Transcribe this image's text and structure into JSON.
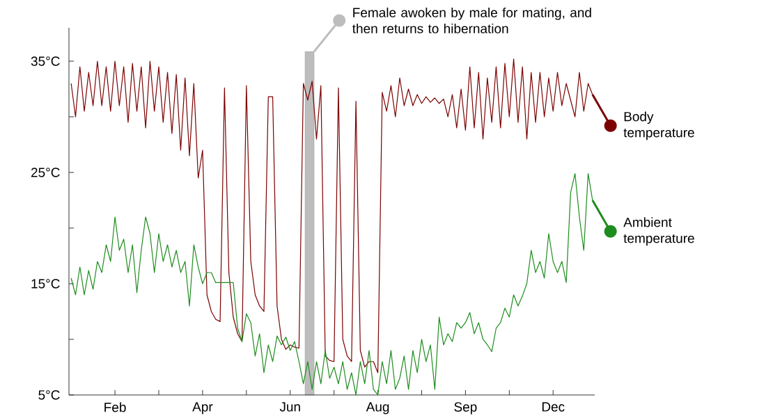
{
  "chart_data": {
    "type": "line",
    "categories": [
      null,
      null,
      null,
      null,
      null,
      null,
      null,
      null,
      null,
      null,
      "Feb",
      null,
      null,
      null,
      null,
      null,
      null,
      null,
      null,
      null,
      null,
      null,
      null,
      null,
      null,
      null,
      null,
      null,
      null,
      null,
      "Apr",
      null,
      null,
      null,
      null,
      null,
      null,
      null,
      null,
      null,
      null,
      null,
      null,
      null,
      null,
      null,
      null,
      null,
      null,
      null,
      "Jun",
      null,
      null,
      null,
      null,
      null,
      null,
      null,
      null,
      null,
      null,
      null,
      null,
      null,
      null,
      null,
      null,
      null,
      null,
      null,
      "Aug",
      null,
      null,
      null,
      null,
      null,
      null,
      null,
      null,
      null,
      null,
      null,
      null,
      null,
      null,
      null,
      null,
      null,
      null,
      null,
      "Sep",
      null,
      null,
      null,
      null,
      null,
      null,
      null,
      null,
      null,
      null,
      null,
      null,
      null,
      null,
      null,
      null,
      null,
      null,
      null,
      "Dec",
      null,
      null,
      null,
      null,
      null,
      null,
      null,
      null,
      null
    ],
    "ylim": [
      5,
      38
    ],
    "yticks": [
      {
        "value": 5,
        "label": "5°C"
      },
      {
        "value": 10,
        "label": null
      },
      {
        "value": 15,
        "label": "15°C"
      },
      {
        "value": 20,
        "label": null
      },
      {
        "value": 25,
        "label": "25°C"
      },
      {
        "value": 30,
        "label": null
      },
      {
        "value": 35,
        "label": "35°C"
      }
    ],
    "grid": false,
    "legend": "right",
    "annotations": [
      "Female awoken by male for mating, and then returns to hibernation"
    ],
    "series": [
      {
        "name": "Body temperature",
        "color": "#7b0000",
        "values": [
          33,
          30,
          34.5,
          30.5,
          34,
          31,
          35,
          31,
          34.5,
          30.5,
          35,
          31,
          34.5,
          29.5,
          34.8,
          30.5,
          34.5,
          29,
          35,
          30.5,
          34.5,
          29.5,
          34,
          28.5,
          33.8,
          27,
          33.5,
          26.5,
          33,
          24.5,
          27,
          14,
          12.5,
          11.8,
          11.6,
          32.6,
          16,
          12,
          10.5,
          9.8,
          32.8,
          17,
          14,
          13,
          12.5,
          31.8,
          31.8,
          13,
          10,
          9.1,
          9.5,
          9.3,
          9.2,
          33,
          31.5,
          33.2,
          28,
          32.8,
          8.5,
          8.1,
          8,
          32.6,
          10,
          8.5,
          8,
          31.4,
          9,
          7.5,
          8,
          8,
          7,
          32.2,
          30.5,
          32.8,
          30,
          33.5,
          31,
          32.5,
          31,
          32,
          31.2,
          31.8,
          31.3,
          31.7,
          31.2,
          31.6,
          30,
          32,
          29,
          32.5,
          28.8,
          34.5,
          29,
          34,
          28,
          33.5,
          29.5,
          34.5,
          29,
          34.8,
          30,
          35.2,
          29.5,
          34.5,
          28,
          34,
          29.5,
          34,
          30,
          33.5,
          30.5,
          34,
          31,
          33,
          31.5,
          30,
          34,
          30.5,
          33,
          32
        ]
      },
      {
        "name": "Ambient temperature",
        "color": "#1e8c1e",
        "values": [
          15.5,
          14,
          16.5,
          14,
          16.2,
          14.5,
          17,
          16,
          18.5,
          17,
          21,
          18,
          19,
          16,
          18.5,
          14.2,
          18,
          21,
          19.5,
          16,
          19.5,
          17,
          18.5,
          16.5,
          18,
          16,
          17,
          13,
          18.5,
          16.5,
          15,
          16,
          16,
          15.1,
          15.1,
          15.1,
          15.1,
          15.1,
          11,
          9.8,
          12.3,
          11.5,
          8.5,
          10.5,
          7,
          9.5,
          8,
          10.3,
          9.5,
          10.2,
          9,
          9.8,
          8,
          6,
          8,
          5.5,
          8,
          6,
          9,
          6.5,
          7.5,
          6,
          8,
          5.5,
          7,
          5,
          8,
          6,
          9,
          5.5,
          5,
          8,
          6,
          9,
          5.5,
          6.5,
          8.5,
          5.5,
          9,
          7,
          10,
          8,
          9.5,
          5.5,
          12,
          9.5,
          10.5,
          9.8,
          11.5,
          11,
          11.5,
          12.4,
          10.5,
          11.5,
          10,
          9.5,
          8.9,
          11,
          11.5,
          12.8,
          12,
          14,
          13,
          13.9,
          15,
          18,
          16,
          17,
          15.5,
          19.5,
          17,
          16,
          17,
          15.1,
          23.2,
          24.9,
          21,
          18,
          24.9,
          22.5
        ]
      }
    ]
  }
}
